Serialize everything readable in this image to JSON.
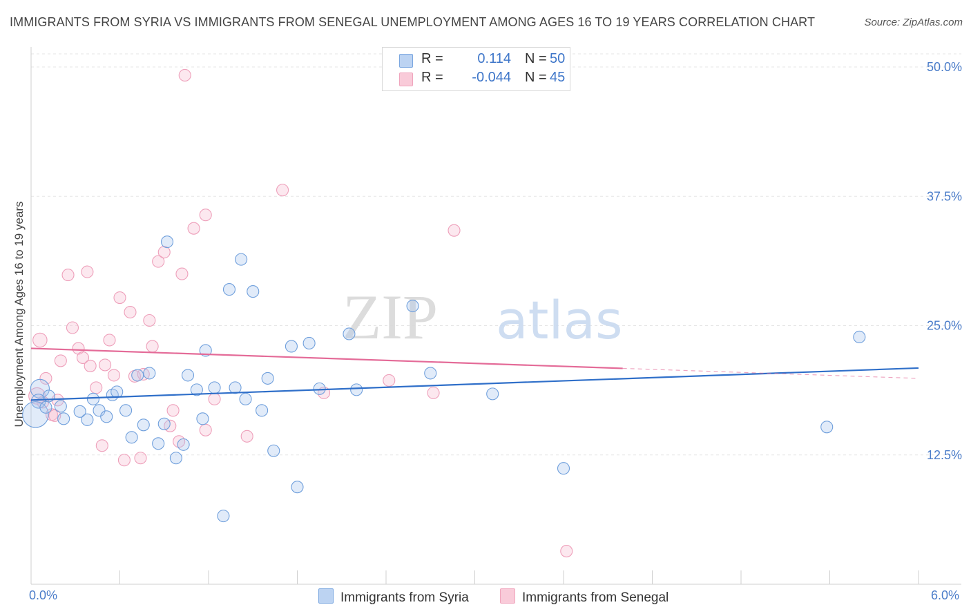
{
  "title": "IMMIGRANTS FROM SYRIA VS IMMIGRANTS FROM SENEGAL UNEMPLOYMENT AMONG AGES 16 TO 19 YEARS CORRELATION CHART",
  "source": "Source: ZipAtlas.com",
  "watermark": {
    "zip": "ZIP",
    "atlas": "atlas"
  },
  "legend_stats": [
    {
      "r_label": "R =",
      "r_value": "0.114",
      "n_label": "N =",
      "n_value": "50",
      "color": "#7ba7e0",
      "fill": "#bcd3f2"
    },
    {
      "r_label": "R =",
      "r_value": "-0.044",
      "n_label": "N =",
      "n_value": "45",
      "color": "#f0a5bd",
      "fill": "#f9cbd9"
    }
  ],
  "chart_data": {
    "type": "scatter",
    "title": "IMMIGRANTS FROM SYRIA VS IMMIGRANTS FROM SENEGAL UNEMPLOYMENT AMONG AGES 16 TO 19 YEARS CORRELATION CHART",
    "xlabel": "",
    "ylabel": "Unemployment Among Ages 16 to 19 years",
    "xlim": [
      0,
      6
    ],
    "ylim": [
      0,
      50
    ],
    "x_tick_labels": [
      "0.0%",
      "6.0%"
    ],
    "y_ticks": [
      12.5,
      25.0,
      37.5,
      50.0
    ],
    "y_tick_labels": [
      "12.5%",
      "25.0%",
      "37.5%",
      "50.0%"
    ],
    "grid": true,
    "legend_position": "bottom",
    "series": [
      {
        "name": "Immigrants from Syria",
        "color": "#6a9ee0",
        "line_color": "#2f6fc9",
        "trend": {
          "x": [
            0,
            6
          ],
          "y": [
            17.8,
            20.9
          ],
          "dashed_from": null
        },
        "points": [
          [
            0.06,
            18.9,
            16
          ],
          [
            0.05,
            17.7,
            12
          ],
          [
            0.03,
            16.4,
            22
          ],
          [
            0.12,
            18.2,
            10
          ],
          [
            0.2,
            17.2,
            10
          ],
          [
            0.22,
            16.0,
            10
          ],
          [
            0.33,
            16.7,
            10
          ],
          [
            0.38,
            15.9,
            10
          ],
          [
            0.42,
            17.9,
            10
          ],
          [
            0.46,
            16.8,
            10
          ],
          [
            0.51,
            16.2,
            10
          ],
          [
            0.55,
            18.3,
            10
          ],
          [
            0.58,
            18.6,
            10
          ],
          [
            0.64,
            16.8,
            10
          ],
          [
            0.68,
            14.2,
            10
          ],
          [
            0.72,
            20.2,
            10
          ],
          [
            0.76,
            15.4,
            10
          ],
          [
            0.8,
            20.4,
            10
          ],
          [
            0.86,
            13.6,
            10
          ],
          [
            0.9,
            15.5,
            10
          ],
          [
            0.92,
            33.1,
            10
          ],
          [
            0.98,
            12.2,
            10
          ],
          [
            1.03,
            13.5,
            10
          ],
          [
            1.06,
            20.2,
            10
          ],
          [
            1.12,
            18.8,
            10
          ],
          [
            1.16,
            16.0,
            10
          ],
          [
            1.18,
            22.6,
            10
          ],
          [
            1.24,
            19.0,
            10
          ],
          [
            1.3,
            6.6,
            10
          ],
          [
            1.34,
            28.5,
            10
          ],
          [
            1.38,
            19.0,
            10
          ],
          [
            1.42,
            31.4,
            10
          ],
          [
            1.45,
            17.9,
            10
          ],
          [
            1.5,
            28.3,
            10
          ],
          [
            1.56,
            16.8,
            10
          ],
          [
            1.6,
            19.9,
            10
          ],
          [
            1.64,
            12.9,
            10
          ],
          [
            1.76,
            23.0,
            10
          ],
          [
            1.8,
            9.4,
            10
          ],
          [
            1.88,
            23.3,
            10
          ],
          [
            1.95,
            18.9,
            10
          ],
          [
            2.15,
            24.2,
            10
          ],
          [
            2.2,
            18.8,
            10
          ],
          [
            2.58,
            26.9,
            10
          ],
          [
            2.7,
            20.4,
            10
          ],
          [
            3.12,
            18.4,
            10
          ],
          [
            3.6,
            11.2,
            10
          ],
          [
            5.38,
            15.2,
            10
          ],
          [
            5.6,
            23.9,
            10
          ],
          [
            0.1,
            17.1,
            10
          ]
        ]
      },
      {
        "name": "Immigrants from Senegal",
        "color": "#f0a5bd",
        "line_color": "#e46b98",
        "trend": {
          "x": [
            0,
            6
          ],
          "y": [
            22.8,
            19.9
          ],
          "dashed_from": 4.0
        },
        "points": [
          [
            0.04,
            18.2,
            14
          ],
          [
            0.08,
            17.6,
            10
          ],
          [
            0.1,
            19.9,
            10
          ],
          [
            0.14,
            16.4,
            10
          ],
          [
            0.18,
            17.8,
            10
          ],
          [
            0.2,
            21.6,
            10
          ],
          [
            0.25,
            29.9,
            10
          ],
          [
            0.28,
            24.8,
            10
          ],
          [
            0.32,
            22.8,
            10
          ],
          [
            0.35,
            21.9,
            10
          ],
          [
            0.38,
            30.2,
            10
          ],
          [
            0.4,
            21.1,
            10
          ],
          [
            0.44,
            19.0,
            10
          ],
          [
            0.48,
            13.4,
            10
          ],
          [
            0.5,
            21.2,
            10
          ],
          [
            0.53,
            23.6,
            10
          ],
          [
            0.56,
            20.2,
            10
          ],
          [
            0.6,
            27.7,
            10
          ],
          [
            0.63,
            12.0,
            10
          ],
          [
            0.67,
            26.3,
            10
          ],
          [
            0.7,
            20.1,
            10
          ],
          [
            0.74,
            12.2,
            10
          ],
          [
            0.76,
            20.3,
            10
          ],
          [
            0.8,
            25.5,
            10
          ],
          [
            0.82,
            23.0,
            10
          ],
          [
            0.86,
            31.2,
            10
          ],
          [
            0.9,
            32.1,
            10
          ],
          [
            0.94,
            15.3,
            10
          ],
          [
            0.96,
            16.8,
            10
          ],
          [
            1.0,
            13.8,
            10
          ],
          [
            1.02,
            30.0,
            10
          ],
          [
            1.04,
            49.2,
            10
          ],
          [
            1.1,
            34.4,
            10
          ],
          [
            1.18,
            35.7,
            10
          ],
          [
            1.18,
            14.9,
            10
          ],
          [
            1.24,
            17.9,
            10
          ],
          [
            1.46,
            14.3,
            10
          ],
          [
            1.7,
            38.1,
            10
          ],
          [
            1.98,
            18.5,
            10
          ],
          [
            2.42,
            19.7,
            10
          ],
          [
            2.72,
            18.5,
            10
          ],
          [
            2.86,
            34.2,
            10
          ],
          [
            3.62,
            3.2,
            10
          ],
          [
            0.06,
            23.6,
            12
          ],
          [
            0.16,
            16.3,
            10
          ]
        ]
      }
    ]
  },
  "x_labels": {
    "left": "0.0%",
    "right": "6.0%"
  }
}
